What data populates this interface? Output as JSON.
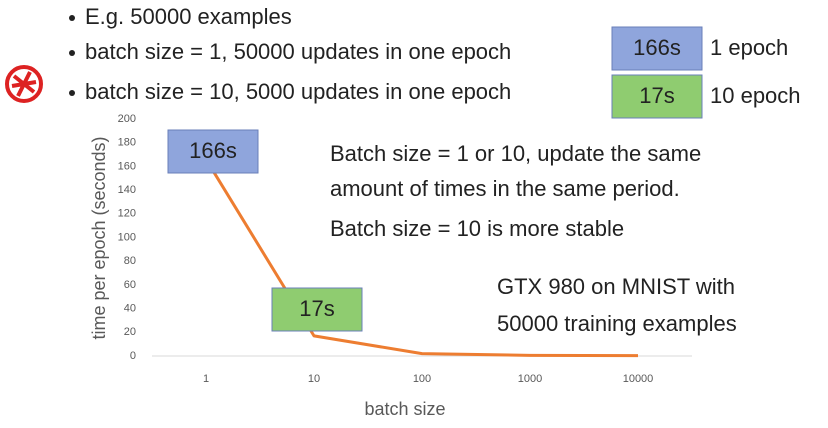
{
  "bullets": [
    "E.g. 50000 examples",
    "batch size = 1, 50000 updates in one epoch",
    "batch size = 10, 5000 updates in one epoch"
  ],
  "timing_boxes": [
    {
      "label": "166s",
      "color": "#8fa5dc",
      "caption": "1 epoch"
    },
    {
      "label": "17s",
      "color": "#8fcc70",
      "caption": "10 epoch"
    }
  ],
  "chart_data": {
    "type": "line",
    "x_label": "batch size",
    "y_label": "time per epoch (seconds)",
    "categories": [
      "1",
      "10",
      "100",
      "1000",
      "10000"
    ],
    "values": [
      166,
      17,
      2,
      0.5,
      0.3
    ],
    "color": "#ed7d31",
    "ylim": [
      0,
      200
    ],
    "yticks": [
      0,
      20,
      40,
      60,
      80,
      100,
      120,
      140,
      160,
      180,
      200
    ],
    "callouts": [
      {
        "text": "166s",
        "color": "#8fa5dc"
      },
      {
        "text": "17s",
        "color": "#8fcc70"
      }
    ],
    "annotations": [
      "Batch size = 1 or 10, update the same",
      "amount of times in the same period.",
      "Batch size = 10 is more stable",
      "GTX 980 on MNIST with",
      "50000 training examples"
    ]
  }
}
